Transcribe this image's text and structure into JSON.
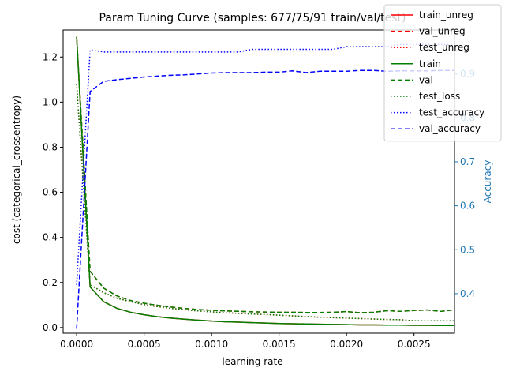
{
  "chart_data": {
    "type": "line",
    "title": "Param Tuning Curve (samples: 677/75/91 train/val/test)",
    "xlabel": "learning rate",
    "ylabel": "cost (categorical_crossentropy)",
    "y2label": "Accuracy",
    "xlim": [
      -0.0001,
      0.0028
    ],
    "ylim": [
      -0.025,
      1.32
    ],
    "y2lim": [
      0.31,
      1.0
    ],
    "x_ticks": [
      0.0,
      0.0005,
      0.001,
      0.0015,
      0.002,
      0.0025
    ],
    "x_tick_labels": [
      "0.0000",
      "0.0005",
      "0.0010",
      "0.0015",
      "0.0020",
      "0.0025"
    ],
    "y_ticks": [
      0.0,
      0.2,
      0.4,
      0.6,
      0.8,
      1.0,
      1.2
    ],
    "y_tick_labels": [
      "0.0",
      "0.2",
      "0.4",
      "0.6",
      "0.8",
      "1.0",
      "1.2"
    ],
    "y2_ticks": [
      0.4,
      0.5,
      0.6,
      0.7,
      0.8,
      0.9
    ],
    "y2_tick_labels": [
      "0.4",
      "0.5",
      "0.6",
      "0.7",
      "0.8",
      "0.9"
    ],
    "y2_color": "#1f77b4",
    "legend_position": "upper-right",
    "x": [
      0.0,
      0.0001,
      0.0002,
      0.0003,
      0.0004,
      0.0005,
      0.0006,
      0.0007,
      0.0008,
      0.0009,
      0.001,
      0.0011,
      0.0012,
      0.0013,
      0.0014,
      0.0015,
      0.0016,
      0.0017,
      0.0018,
      0.0019,
      0.002,
      0.0021,
      0.0022,
      0.0023,
      0.0024,
      0.0025,
      0.0026,
      0.0027,
      0.0028
    ],
    "series": [
      {
        "name": "train_unreg",
        "axis": "left",
        "color": "#ff0000",
        "dash": "solid",
        "values": [
          1.29,
          0.18,
          0.115,
          0.085,
          0.068,
          0.057,
          0.048,
          0.042,
          0.037,
          0.033,
          0.029,
          0.026,
          0.024,
          0.022,
          0.02,
          0.018,
          0.017,
          0.016,
          0.015,
          0.014,
          0.013,
          0.012,
          0.012,
          0.011,
          0.011,
          0.01,
          0.01,
          0.009,
          0.009
        ]
      },
      {
        "name": "val_unreg",
        "axis": "left",
        "color": "#ff0000",
        "dash": "dashed",
        "values": [
          1.29,
          0.25,
          0.175,
          0.14,
          0.12,
          0.108,
          0.099,
          0.091,
          0.085,
          0.08,
          0.077,
          0.074,
          0.072,
          0.07,
          0.069,
          0.068,
          0.068,
          0.067,
          0.067,
          0.068,
          0.071,
          0.066,
          0.068,
          0.075,
          0.072,
          0.076,
          0.078,
          0.072,
          0.079
        ]
      },
      {
        "name": "test_unreg",
        "axis": "left",
        "color": "#ff0000",
        "dash": "dotted",
        "values": [
          1.08,
          0.19,
          0.155,
          0.13,
          0.115,
          0.102,
          0.093,
          0.085,
          0.079,
          0.074,
          0.07,
          0.066,
          0.063,
          0.06,
          0.058,
          0.055,
          0.052,
          0.049,
          0.046,
          0.044,
          0.042,
          0.04,
          0.038,
          0.036,
          0.035,
          0.03,
          0.03,
          0.03,
          0.03
        ]
      },
      {
        "name": "train",
        "axis": "left",
        "color": "#008000",
        "dash": "solid",
        "values": [
          1.29,
          0.18,
          0.115,
          0.085,
          0.068,
          0.057,
          0.048,
          0.042,
          0.037,
          0.033,
          0.029,
          0.026,
          0.024,
          0.022,
          0.02,
          0.018,
          0.017,
          0.016,
          0.015,
          0.014,
          0.013,
          0.012,
          0.012,
          0.011,
          0.011,
          0.01,
          0.01,
          0.009,
          0.009
        ]
      },
      {
        "name": "val",
        "axis": "left",
        "color": "#008000",
        "dash": "dashed",
        "values": [
          1.29,
          0.25,
          0.175,
          0.14,
          0.12,
          0.108,
          0.099,
          0.091,
          0.085,
          0.08,
          0.077,
          0.074,
          0.072,
          0.07,
          0.069,
          0.068,
          0.068,
          0.067,
          0.067,
          0.068,
          0.071,
          0.066,
          0.068,
          0.075,
          0.072,
          0.076,
          0.078,
          0.072,
          0.079
        ]
      },
      {
        "name": "test_loss",
        "axis": "left",
        "color": "#008000",
        "dash": "dotted",
        "values": [
          1.08,
          0.19,
          0.155,
          0.13,
          0.115,
          0.102,
          0.093,
          0.085,
          0.079,
          0.074,
          0.07,
          0.066,
          0.063,
          0.06,
          0.058,
          0.055,
          0.052,
          0.049,
          0.046,
          0.044,
          0.042,
          0.04,
          0.038,
          0.036,
          0.035,
          0.03,
          0.03,
          0.03,
          0.03
        ]
      },
      {
        "name": "test_accuracy",
        "axis": "right",
        "color": "#0000ff",
        "dash": "dotted",
        "values": [
          0.42,
          0.955,
          0.95,
          0.95,
          0.95,
          0.95,
          0.95,
          0.95,
          0.95,
          0.95,
          0.95,
          0.95,
          0.95,
          0.956,
          0.956,
          0.956,
          0.956,
          0.956,
          0.956,
          0.956,
          0.962,
          0.962,
          0.962,
          0.962,
          0.967,
          0.967,
          0.967,
          0.967,
          0.967
        ]
      },
      {
        "name": "val_accuracy",
        "axis": "right",
        "color": "#0000ff",
        "dash": "dashed",
        "values": [
          0.32,
          0.86,
          0.883,
          0.887,
          0.89,
          0.893,
          0.895,
          0.897,
          0.898,
          0.9,
          0.902,
          0.903,
          0.903,
          0.903,
          0.904,
          0.904,
          0.907,
          0.903,
          0.906,
          0.906,
          0.906,
          0.908,
          0.908,
          0.906,
          0.907,
          0.907,
          0.907,
          0.908,
          0.908
        ]
      }
    ]
  }
}
